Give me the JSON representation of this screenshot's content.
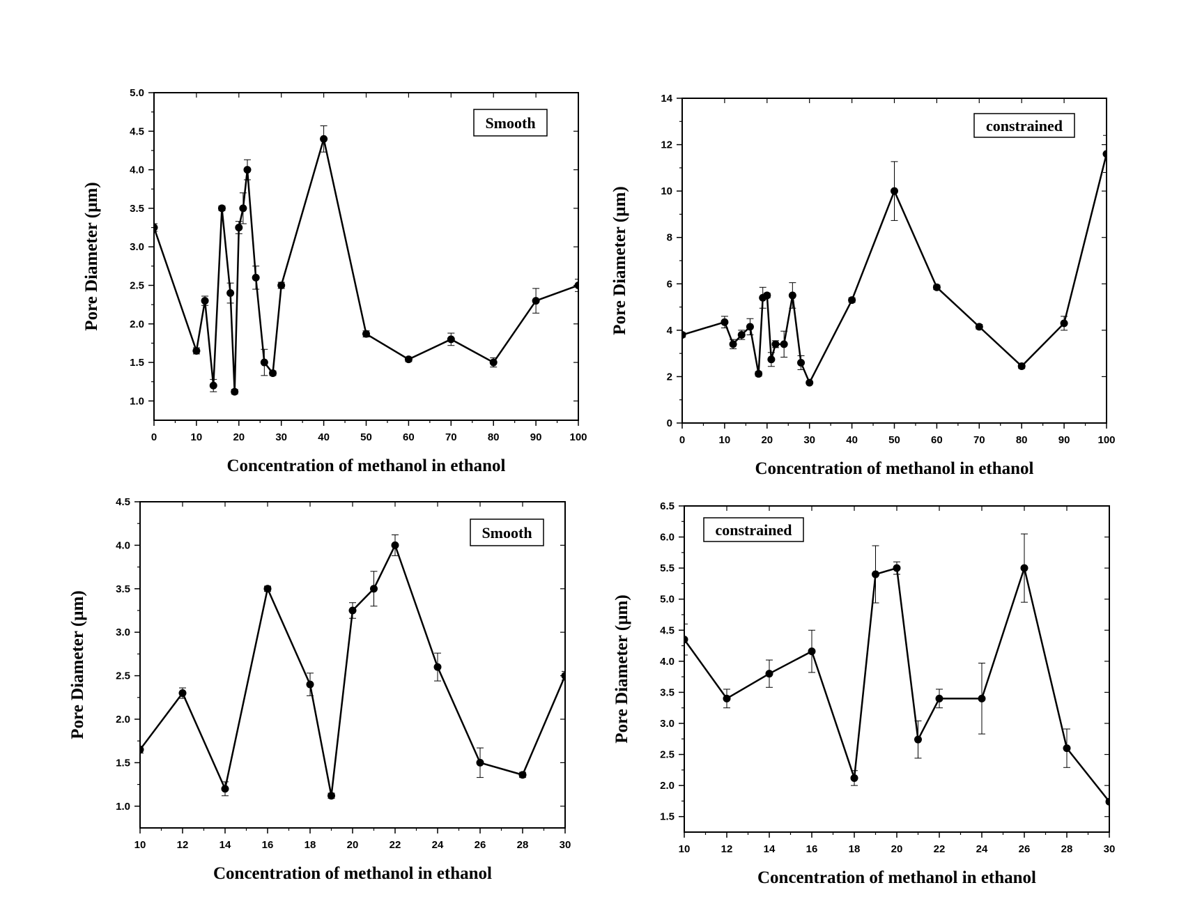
{
  "figure": {
    "description_label": ""
  },
  "chart_data": [
    {
      "type": "line",
      "panel": "top-left",
      "legend": "Smooth",
      "legend_position": "top-right",
      "xlabel": "Concentration of methanol in ethanol",
      "ylabel": "Pore Diameter (µm)",
      "xlim": [
        0,
        100
      ],
      "ylim": [
        0.75,
        5.0
      ],
      "xticks": [
        0,
        10,
        20,
        30,
        40,
        50,
        60,
        70,
        80,
        90,
        100
      ],
      "yticks": [
        1.0,
        1.5,
        2.0,
        2.5,
        3.0,
        3.5,
        4.0,
        4.5,
        5.0
      ],
      "ytick_labels": [
        "1.0",
        "1.5",
        "2.0",
        "2.5",
        "3.0",
        "3.5",
        "4.0",
        "4.5",
        "5.0"
      ],
      "x": [
        0,
        10,
        12,
        14,
        16,
        18,
        19,
        20,
        21,
        22,
        24,
        26,
        28,
        30,
        40,
        50,
        60,
        70,
        80,
        90,
        100
      ],
      "y": [
        3.25,
        1.65,
        2.3,
        1.2,
        3.5,
        2.4,
        1.12,
        3.25,
        3.5,
        4.0,
        2.6,
        1.5,
        1.36,
        2.5,
        4.4,
        1.87,
        1.54,
        1.8,
        1.5,
        2.3,
        2.5
      ],
      "err": [
        0.05,
        0.04,
        0.06,
        0.08,
        0.03,
        0.13,
        0.03,
        0.08,
        0.2,
        0.13,
        0.15,
        0.17,
        0.03,
        0.04,
        0.17,
        0.04,
        0.03,
        0.08,
        0.06,
        0.16,
        0.08
      ]
    },
    {
      "type": "line",
      "panel": "top-right",
      "legend": "constrained",
      "legend_position": "top-right",
      "xlabel": "Concentration of methanol in ethanol",
      "ylabel": "Pore Diameter (µm)",
      "xlim": [
        0,
        100
      ],
      "ylim": [
        0,
        14
      ],
      "xticks": [
        0,
        10,
        20,
        30,
        40,
        50,
        60,
        70,
        80,
        90,
        100
      ],
      "yticks": [
        0,
        2,
        4,
        6,
        8,
        10,
        12,
        14
      ],
      "ytick_labels": [
        "0",
        "2",
        "4",
        "6",
        "8",
        "10",
        "12",
        "14"
      ],
      "x": [
        0,
        10,
        12,
        14,
        16,
        18,
        19,
        20,
        21,
        22,
        24,
        26,
        28,
        30,
        40,
        50,
        60,
        70,
        80,
        90,
        100
      ],
      "y": [
        3.8,
        4.35,
        3.4,
        3.8,
        4.15,
        2.12,
        5.4,
        5.5,
        2.74,
        3.4,
        3.4,
        5.5,
        2.6,
        1.74,
        5.3,
        10.0,
        5.85,
        4.15,
        2.45,
        4.3,
        11.6
      ],
      "err": [
        0.1,
        0.25,
        0.2,
        0.2,
        0.35,
        0.1,
        0.45,
        0.1,
        0.3,
        0.15,
        0.56,
        0.55,
        0.3,
        0.05,
        0.1,
        1.27,
        0.1,
        0.1,
        0.1,
        0.3,
        0.8
      ]
    },
    {
      "type": "line",
      "panel": "bottom-left",
      "legend": "Smooth",
      "legend_position": "top-right",
      "xlabel": "Concentration of methanol in ethanol",
      "ylabel": "Pore Diameter (µm)",
      "xlim": [
        10,
        30
      ],
      "ylim": [
        0.75,
        4.5
      ],
      "xticks": [
        10,
        12,
        14,
        16,
        18,
        20,
        22,
        24,
        26,
        28,
        30
      ],
      "yticks": [
        1.0,
        1.5,
        2.0,
        2.5,
        3.0,
        3.5,
        4.0,
        4.5
      ],
      "ytick_labels": [
        "1.0",
        "1.5",
        "2.0",
        "2.5",
        "3.0",
        "3.5",
        "4.0",
        "4.5"
      ],
      "x": [
        10,
        12,
        14,
        16,
        18,
        19,
        20,
        21,
        22,
        24,
        26,
        28,
        30
      ],
      "y": [
        1.65,
        2.3,
        1.2,
        3.5,
        2.4,
        1.12,
        3.25,
        3.5,
        4.0,
        2.6,
        1.5,
        1.36,
        2.5
      ],
      "err": [
        0.04,
        0.06,
        0.08,
        0.03,
        0.13,
        0.03,
        0.09,
        0.2,
        0.12,
        0.16,
        0.17,
        0.03,
        0.05
      ]
    },
    {
      "type": "line",
      "panel": "bottom-right",
      "legend": "constrained",
      "legend_position": "top-left",
      "xlabel": "Concentration of methanol in ethanol",
      "ylabel": "Pore Diameter (µm)",
      "xlim": [
        10,
        30
      ],
      "ylim": [
        1.25,
        6.5
      ],
      "xticks": [
        10,
        12,
        14,
        16,
        18,
        20,
        22,
        24,
        26,
        28,
        30
      ],
      "yticks": [
        1.5,
        2.0,
        2.5,
        3.0,
        3.5,
        4.0,
        4.5,
        5.0,
        5.5,
        6.0,
        6.5
      ],
      "ytick_labels": [
        "1.5",
        "2.0",
        "2.5",
        "3.0",
        "3.5",
        "4.0",
        "4.5",
        "5.0",
        "5.5",
        "6.0",
        "6.5"
      ],
      "x": [
        10,
        12,
        14,
        16,
        18,
        19,
        20,
        21,
        22,
        24,
        26,
        28,
        30
      ],
      "y": [
        4.35,
        3.4,
        3.8,
        4.16,
        2.12,
        5.4,
        5.5,
        2.74,
        3.4,
        3.4,
        5.5,
        2.6,
        1.74
      ],
      "err": [
        0.25,
        0.15,
        0.22,
        0.34,
        0.12,
        0.46,
        0.1,
        0.3,
        0.15,
        0.57,
        0.55,
        0.31,
        0.03
      ]
    }
  ]
}
